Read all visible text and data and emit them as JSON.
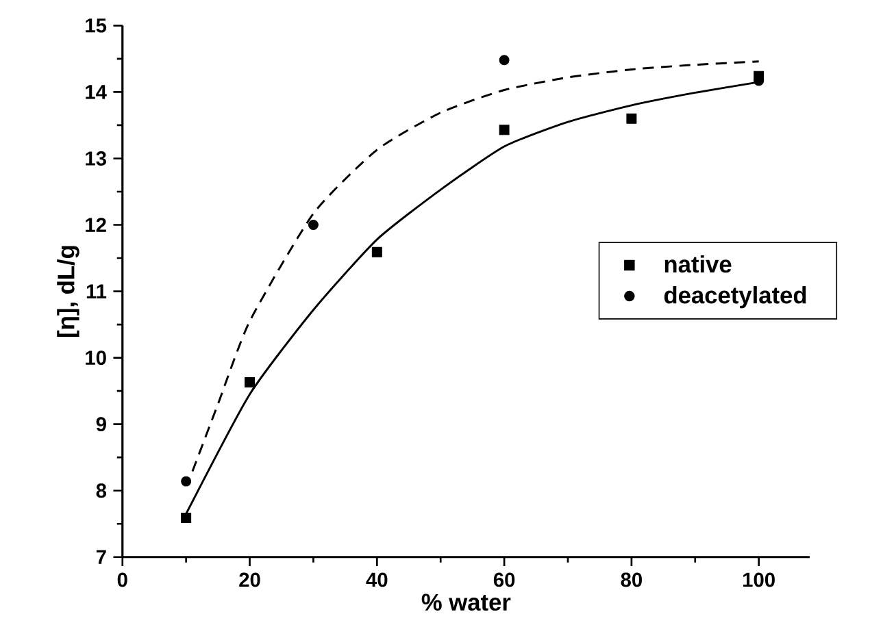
{
  "chart_data": {
    "type": "scatter",
    "xlabel": "% water",
    "ylabel": "[η], dL/g",
    "xlim": [
      0,
      108
    ],
    "ylim": [
      7,
      15
    ],
    "xticks": [
      0,
      20,
      40,
      60,
      80,
      100
    ],
    "yticks": [
      7,
      8,
      9,
      10,
      11,
      12,
      13,
      14,
      15
    ],
    "grid": false,
    "legend": "right",
    "series": [
      {
        "name": "native",
        "marker": "square",
        "color": "#000000",
        "x": [
          10,
          20,
          40,
          60,
          80,
          100
        ],
        "values": [
          7.59,
          9.63,
          11.59,
          13.43,
          13.6,
          14.24
        ]
      },
      {
        "name": "deacetylated",
        "marker": "circle",
        "color": "#000000",
        "x": [
          10,
          30,
          60,
          100
        ],
        "values": [
          8.14,
          12.0,
          14.48,
          14.17
        ]
      },
      {
        "type": "line",
        "line_style": "solid",
        "marker": "none",
        "color": "#000000",
        "x": [
          10,
          20,
          30,
          40,
          50,
          60,
          70,
          80,
          90,
          100
        ],
        "values": [
          7.65,
          9.45,
          10.72,
          11.78,
          12.53,
          13.18,
          13.55,
          13.8,
          13.99,
          14.15
        ]
      },
      {
        "type": "line",
        "line_style": "dashed",
        "marker": "none",
        "color": "#000000",
        "x": [
          11,
          15,
          20,
          30,
          40,
          50,
          60,
          70,
          80,
          90,
          100
        ],
        "values": [
          8.29,
          9.3,
          10.55,
          12.17,
          13.13,
          13.69,
          14.03,
          14.22,
          14.34,
          14.41,
          14.46
        ]
      }
    ]
  }
}
